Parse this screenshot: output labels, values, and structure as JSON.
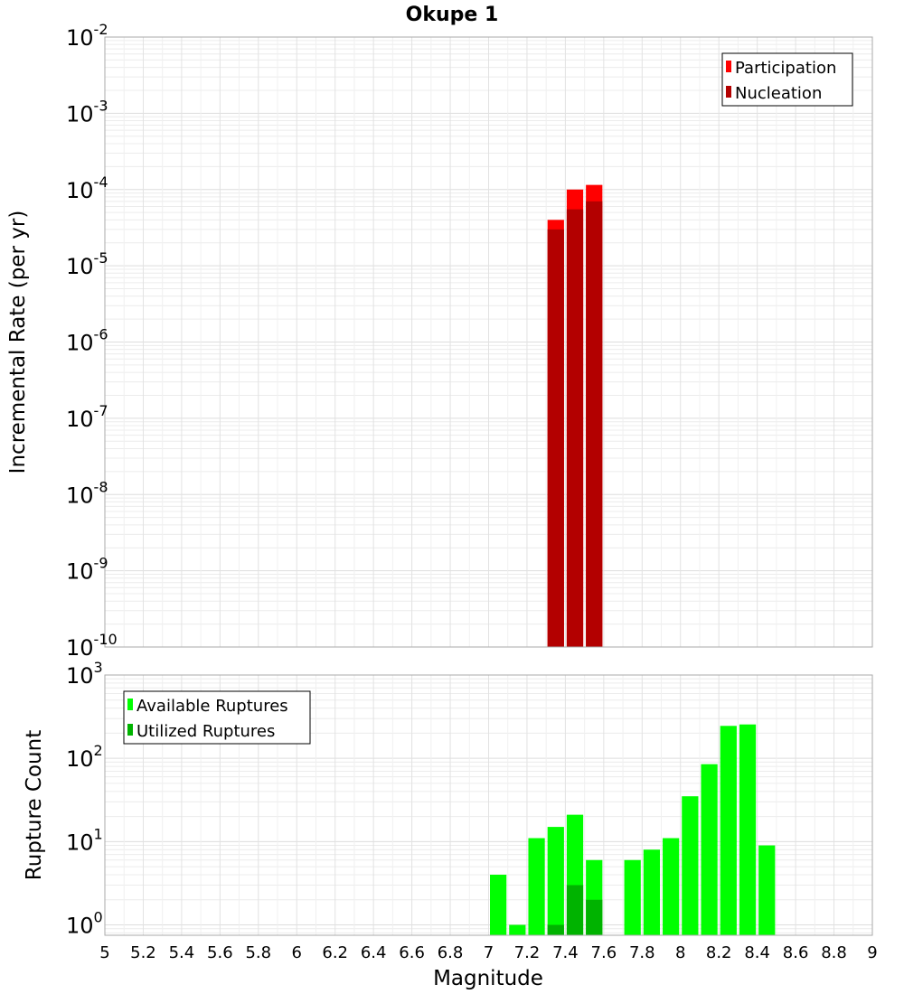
{
  "chart_data": {
    "title": "Okupe 1",
    "xlabel": "Magnitude",
    "xlim": [
      5,
      9
    ],
    "x_ticks": [
      "5",
      "5.2",
      "5.4",
      "5.6",
      "5.8",
      "6",
      "6.2",
      "6.4",
      "6.6",
      "6.8",
      "7",
      "7.2",
      "7.4",
      "7.6",
      "7.8",
      "8",
      "8.2",
      "8.4",
      "8.6",
      "8.8",
      "9"
    ],
    "bin_width": 0.1,
    "grid": true,
    "panels": [
      {
        "type": "bar",
        "ylabel": "Incremental Rate (per yr)",
        "yscale": "log",
        "ylim": [
          1e-10,
          0.01
        ],
        "y_ticks": [
          {
            "base": "10",
            "exp": "-10"
          },
          {
            "base": "10",
            "exp": "-9"
          },
          {
            "base": "10",
            "exp": "-8"
          },
          {
            "base": "10",
            "exp": "-7"
          },
          {
            "base": "10",
            "exp": "-6"
          },
          {
            "base": "10",
            "exp": "-5"
          },
          {
            "base": "10",
            "exp": "-4"
          },
          {
            "base": "10",
            "exp": "-3"
          },
          {
            "base": "10",
            "exp": "-2"
          }
        ],
        "legend_position": "top-right",
        "series": [
          {
            "name": "Participation",
            "color": "#ff0000",
            "x": [
              7.35,
              7.45,
              7.55
            ],
            "values": [
              4e-05,
              0.0001,
              0.000115
            ]
          },
          {
            "name": "Nucleation",
            "color": "#b30000",
            "x": [
              7.35,
              7.45,
              7.55
            ],
            "values": [
              3e-05,
              5.5e-05,
              7e-05
            ]
          }
        ]
      },
      {
        "type": "bar",
        "ylabel": "Rupture Count",
        "yscale": "log",
        "ylim": [
          0.75,
          1000
        ],
        "y_ticks": [
          {
            "base": "10",
            "exp": "0"
          },
          {
            "base": "10",
            "exp": "1"
          },
          {
            "base": "10",
            "exp": "2"
          },
          {
            "base": "10",
            "exp": "3"
          }
        ],
        "legend_position": "top-left",
        "series": [
          {
            "name": "Available Ruptures",
            "color": "#00ff00",
            "x": [
              7.05,
              7.15,
              7.25,
              7.35,
              7.45,
              7.55,
              7.75,
              7.85,
              7.95,
              8.05,
              8.15,
              8.25,
              8.35,
              8.45
            ],
            "values": [
              4,
              1,
              11,
              15,
              21,
              6,
              6,
              8,
              11,
              35,
              85,
              245,
              255,
              9
            ]
          },
          {
            "name": "Utilized Ruptures",
            "color": "#00b300",
            "x": [
              7.35,
              7.45,
              7.55
            ],
            "values": [
              1,
              3,
              2
            ]
          }
        ]
      }
    ]
  }
}
